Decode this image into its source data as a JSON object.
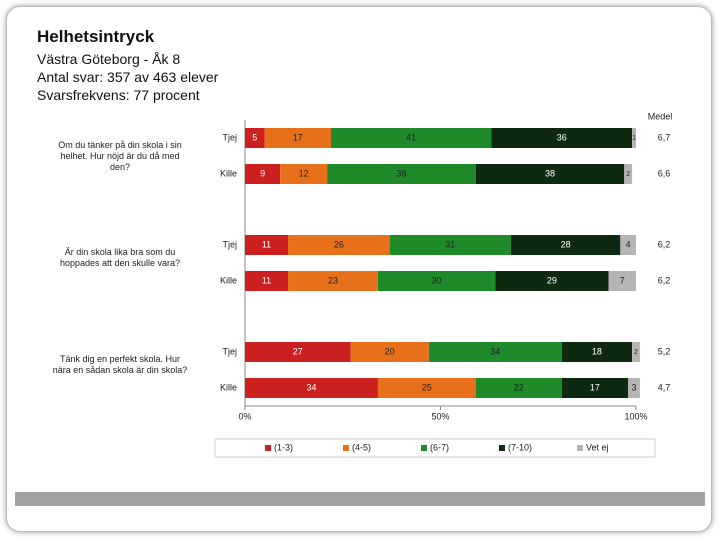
{
  "header": {
    "title": "Helhetsintryck",
    "lines": [
      "Västra Göteborg - Åk 8",
      "Antal svar: 357 av 463 elever",
      "Svarsfrekvens: 77 procent"
    ]
  },
  "chart_data": {
    "type": "stacked-bar-horizontal",
    "categories": [
      "Tjej",
      "Kille",
      "Tjej",
      "Kille",
      "Tjej",
      "Kille"
    ],
    "groups": [
      "Om du tänker på din skola i sin helhet. Hur nöjd är du då med den?",
      "Är din skola lika bra som du hoppades att den skulle vara?",
      "Tänk dig en perfekt skola. Hur nära en sådan skola är din skola?"
    ],
    "series": [
      {
        "name": "(1-3)",
        "color": "#cc1f1f",
        "values": [
          5,
          9,
          11,
          11,
          27,
          34
        ]
      },
      {
        "name": "(4-5)",
        "color": "#e8701a",
        "values": [
          17,
          12,
          26,
          23,
          20,
          25
        ]
      },
      {
        "name": "(6-7)",
        "color": "#1f8a2a",
        "values": [
          41,
          38,
          31,
          30,
          34,
          22
        ]
      },
      {
        "name": "(7-10)",
        "color": "#0d2a10",
        "values": [
          36,
          38,
          28,
          29,
          18,
          17
        ]
      },
      {
        "name": "Vet ej",
        "color": "#b5b5b5",
        "values": [
          1,
          2,
          4,
          7,
          2,
          3
        ]
      }
    ],
    "medel": {
      "title": "Medel",
      "values": [
        6.7,
        6.6,
        6.2,
        6.2,
        5.2,
        4.7
      ],
      "value_labels": [
        "6,7",
        "6,6",
        "6,2",
        "6,2",
        "5,2",
        "4,7"
      ]
    },
    "xlim": [
      0,
      100
    ],
    "xticks": [
      {
        "value": 0,
        "label": "0%"
      },
      {
        "value": 50,
        "label": "50%"
      },
      {
        "value": 100,
        "label": "100%"
      }
    ]
  }
}
